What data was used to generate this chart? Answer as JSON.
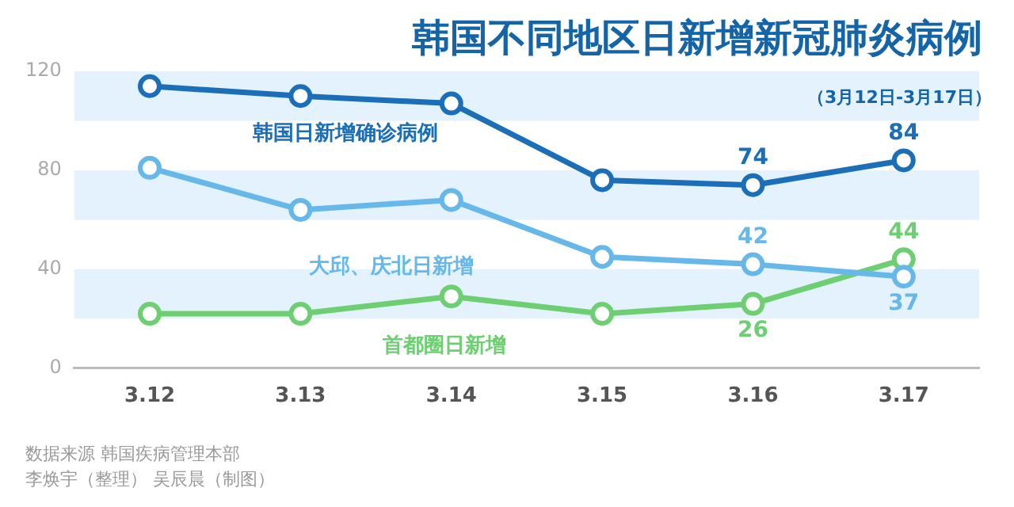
{
  "chart_data": {
    "type": "line",
    "title": "韩国不同地区日新增新冠肺炎病例",
    "subtitle": "（3月12日-3月17日）",
    "categories": [
      "3.12",
      "3.13",
      "3.14",
      "3.15",
      "3.16",
      "3.17"
    ],
    "series": [
      {
        "name": "韩国日新增确诊病例",
        "color": "#1a6fb8",
        "values": [
          114,
          110,
          107,
          76,
          74,
          84
        ],
        "value_labels": [
          null,
          null,
          null,
          null,
          "74",
          "84"
        ]
      },
      {
        "name": "大邱、庆北日新增",
        "color": "#66b8ea",
        "values": [
          81,
          64,
          68,
          45,
          42,
          37
        ],
        "value_labels": [
          null,
          null,
          null,
          null,
          "42",
          "37"
        ]
      },
      {
        "name": "首都圈日新增",
        "color": "#6dcf72",
        "values": [
          22,
          22,
          29,
          22,
          26,
          44
        ],
        "value_labels": [
          null,
          null,
          null,
          null,
          "26",
          "44"
        ]
      }
    ],
    "ylim": [
      0,
      120
    ],
    "yticks": [
      0,
      40,
      80,
      120
    ],
    "bands": [
      {
        "axis": "y",
        "from": 20,
        "to": 40,
        "color": "#e3f2fc"
      },
      {
        "axis": "y",
        "from": 60,
        "to": 80,
        "color": "#e3f2fc"
      },
      {
        "axis": "y",
        "from": 100,
        "to": 120,
        "color": "#e3f2fc"
      }
    ],
    "grid": false,
    "legend": false,
    "marker": "circle",
    "line_style": "solid",
    "annotations": [
      "数据来源 韩国疾病管理本部",
      "李焕宇（整理） 吴辰晨（制图）"
    ]
  }
}
